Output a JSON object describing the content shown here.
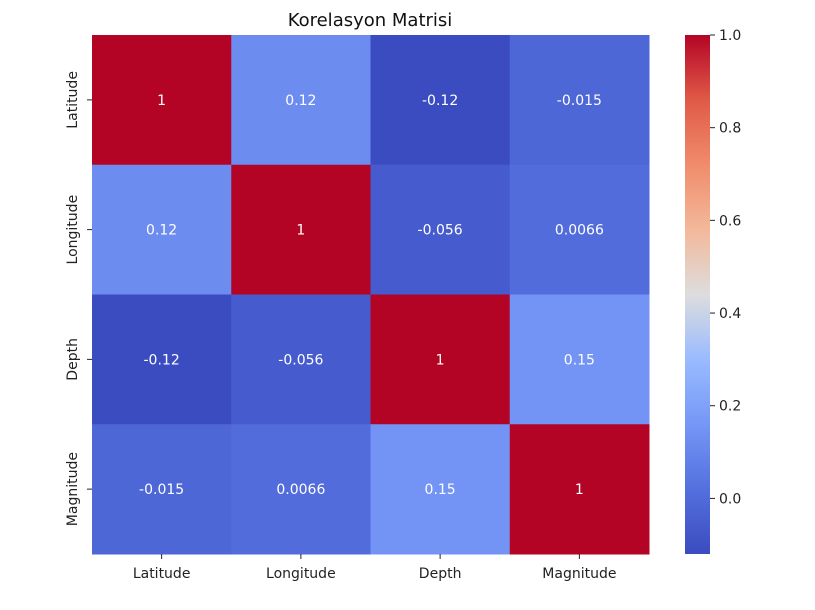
{
  "chart_data": {
    "type": "heatmap",
    "title": "Korelasyon Matrisi",
    "xlabel": "",
    "ylabel": "",
    "x_categories": [
      "Latitude",
      "Longitude",
      "Depth",
      "Magnitude"
    ],
    "y_categories": [
      "Latitude",
      "Longitude",
      "Depth",
      "Magnitude"
    ],
    "values": [
      [
        1,
        0.12,
        -0.12,
        -0.015
      ],
      [
        0.12,
        1,
        -0.056,
        0.0066
      ],
      [
        -0.12,
        -0.056,
        1,
        0.15
      ],
      [
        -0.015,
        0.0066,
        0.15,
        1
      ]
    ],
    "annotations": [
      [
        "1",
        "0.12",
        "-0.12",
        "-0.015"
      ],
      [
        "0.12",
        "1",
        "-0.056",
        "0.0066"
      ],
      [
        "-0.12",
        "-0.056",
        "1",
        "0.15"
      ],
      [
        "-0.015",
        "0.0066",
        "0.15",
        "1"
      ]
    ],
    "colormap": "coolwarm",
    "colorbar": {
      "range": [
        -0.12,
        1.0
      ],
      "ticks": [
        0.0,
        0.2,
        0.4,
        0.6,
        0.8,
        1.0
      ],
      "tick_labels": [
        "0.0",
        "0.2",
        "0.4",
        "0.6",
        "0.8",
        "1.0"
      ]
    },
    "grid": false,
    "legend": "none"
  }
}
